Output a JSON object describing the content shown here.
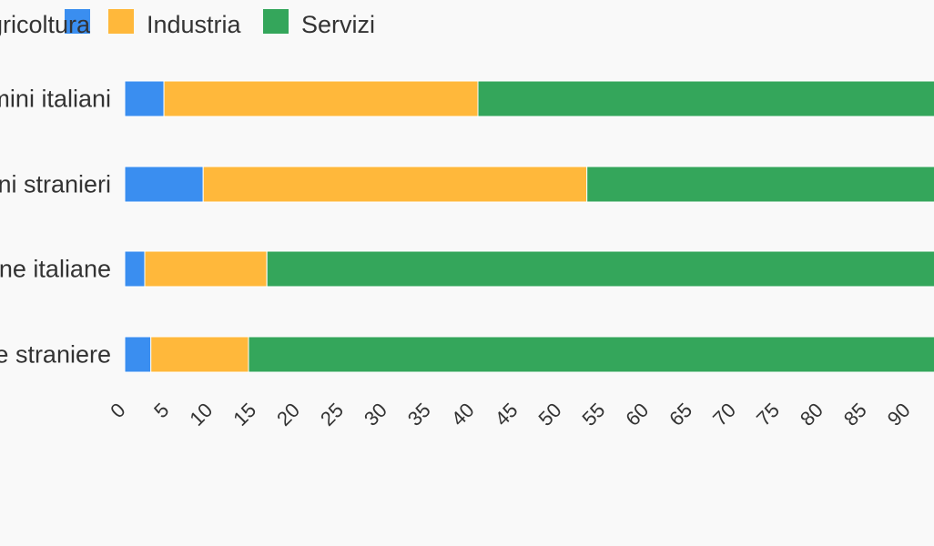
{
  "chart_data": {
    "type": "bar",
    "orientation": "horizontal",
    "stacked": true,
    "categories": [
      "Uomini italiani",
      "Uomini stranieri",
      "Donne italiane",
      "Donne straniere"
    ],
    "series": [
      {
        "name": "Agricoltura",
        "color": "#3a8ef0",
        "values": [
          4.5,
          9.0,
          2.3,
          3.0
        ]
      },
      {
        "name": "Industria",
        "color": "#ffb83b",
        "values": [
          36.0,
          44.0,
          14.0,
          11.2
        ]
      },
      {
        "name": "Servizi",
        "color": "#34a65b",
        "values": [
          59.5,
          47.0,
          83.7,
          85.8
        ]
      }
    ],
    "x_ticks": [
      0,
      5,
      10,
      15,
      20,
      25,
      30,
      35,
      40,
      45,
      50,
      55,
      60,
      65,
      70,
      75,
      80,
      85,
      90
    ],
    "xlim": [
      0,
      100
    ],
    "legend_position": "top",
    "grid": false
  }
}
